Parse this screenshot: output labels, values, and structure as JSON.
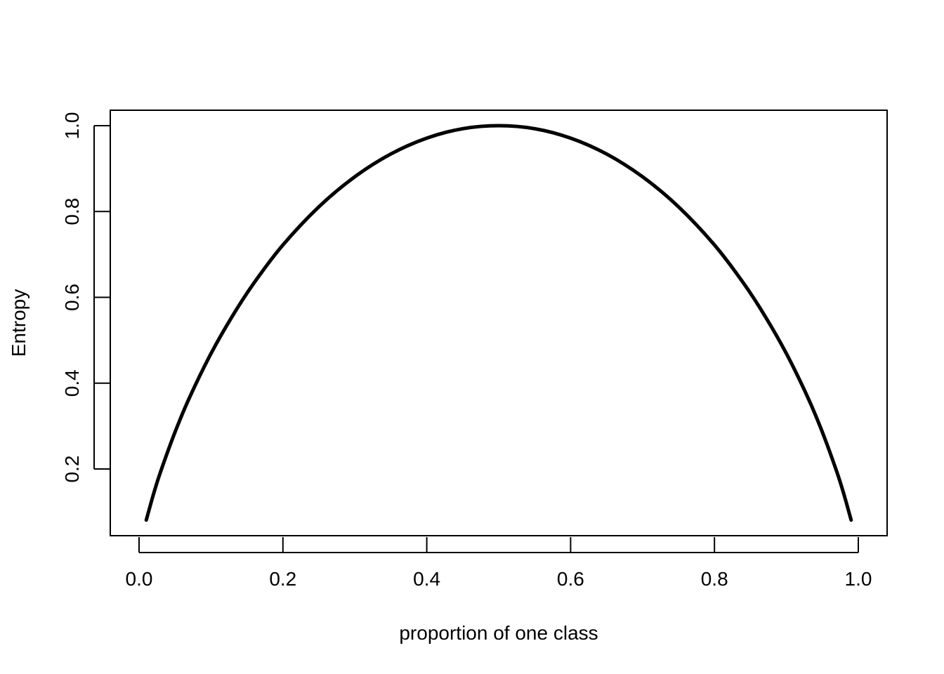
{
  "chart_data": {
    "type": "line",
    "title": "",
    "xlabel": "proportion of one class",
    "ylabel": "Entropy",
    "xlim": [
      0.0,
      1.0
    ],
    "ylim": [
      0.08,
      1.0
    ],
    "xticks": [
      "0.0",
      "0.2",
      "0.4",
      "0.6",
      "0.8",
      "1.0"
    ],
    "yticks": [
      "0.2",
      "0.4",
      "0.6",
      "0.8",
      "1.0"
    ],
    "grid": false,
    "line_color": "#000000",
    "series": [
      {
        "x": [
          0.01,
          0.02,
          0.03,
          0.05,
          0.07,
          0.1,
          0.13,
          0.16,
          0.2,
          0.25,
          0.3,
          0.35,
          0.4,
          0.45,
          0.5,
          0.55,
          0.6,
          0.65,
          0.7,
          0.75,
          0.8,
          0.84,
          0.87,
          0.9,
          0.93,
          0.95,
          0.97,
          0.98,
          0.99
        ],
        "y": [
          0.081,
          0.141,
          0.194,
          0.286,
          0.366,
          0.469,
          0.557,
          0.634,
          0.722,
          0.811,
          0.881,
          0.934,
          0.971,
          0.993,
          1.0,
          0.993,
          0.971,
          0.934,
          0.881,
          0.811,
          0.722,
          0.634,
          0.557,
          0.469,
          0.366,
          0.286,
          0.194,
          0.141,
          0.081
        ]
      }
    ]
  }
}
